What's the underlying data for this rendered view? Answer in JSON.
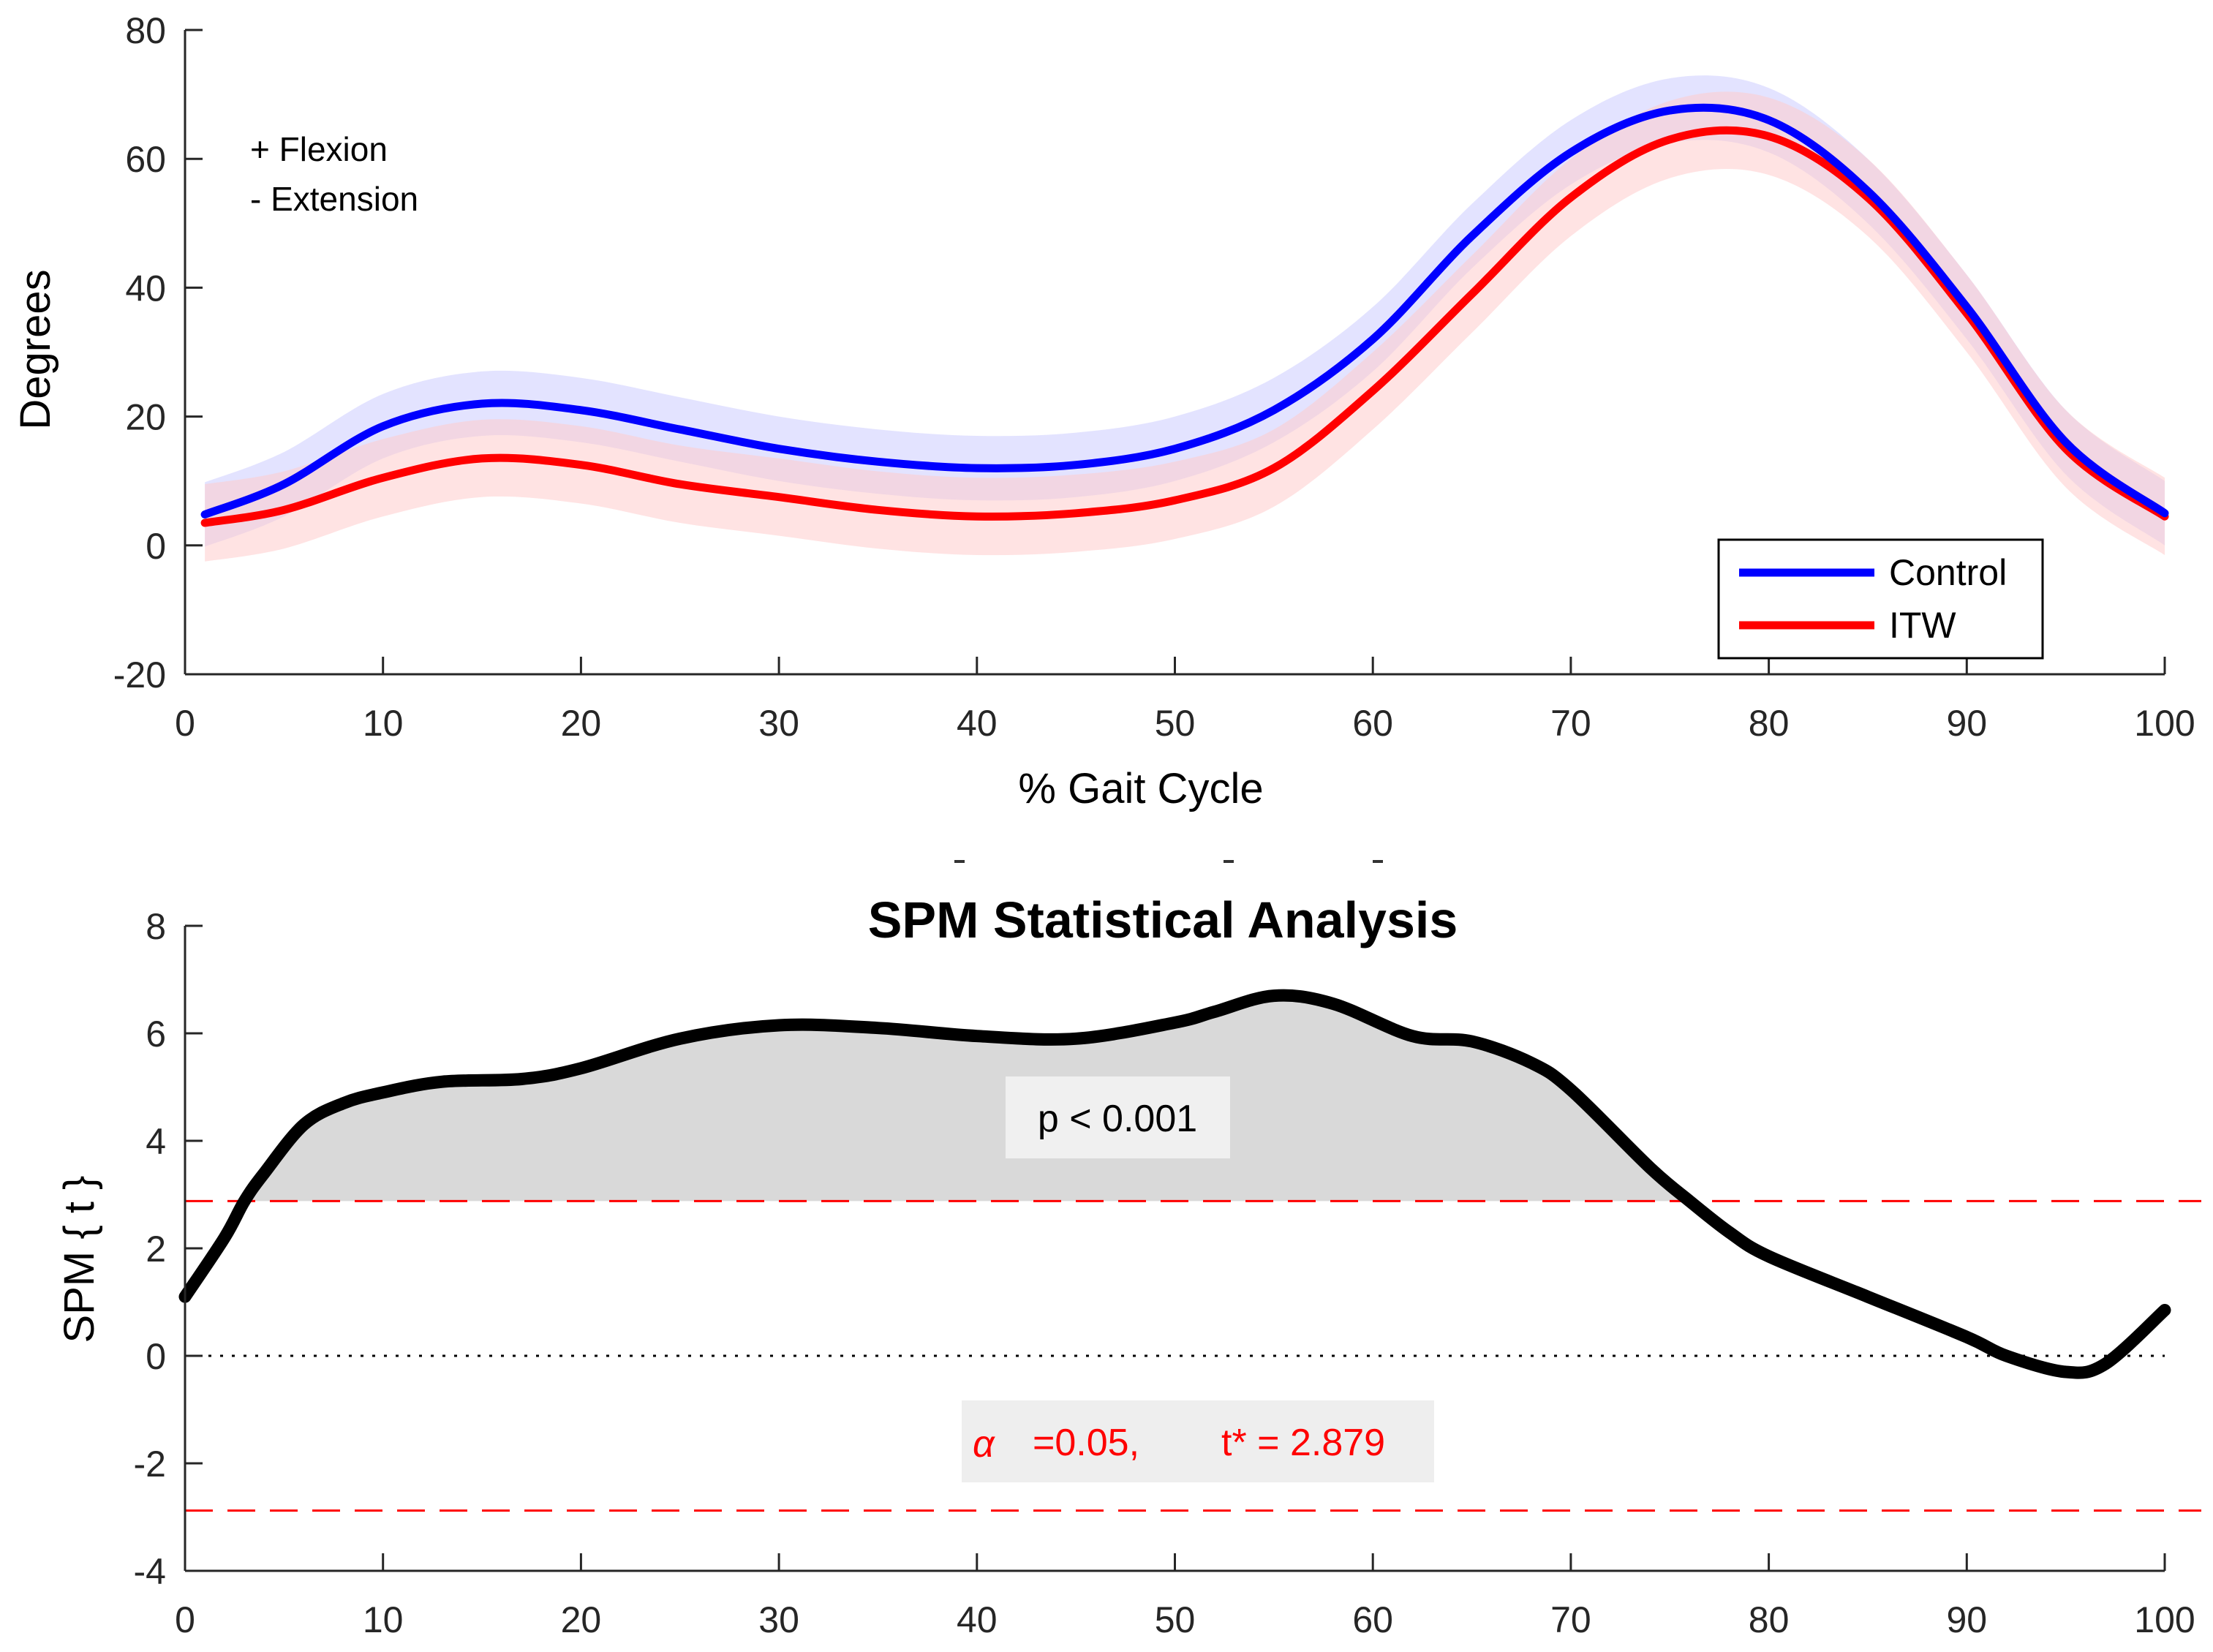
{
  "chart_data": [
    {
      "type": "line",
      "title": "",
      "xlabel": "% Gait Cycle",
      "ylabel": "Degrees",
      "xlim": [
        0,
        100
      ],
      "ylim": [
        -20,
        80
      ],
      "xticks": [
        "0",
        "10",
        "20",
        "30",
        "40",
        "50",
        "60",
        "70",
        "80",
        "90",
        "100"
      ],
      "yticks": [
        "-20",
        "0",
        "20",
        "40",
        "60",
        "80"
      ],
      "annotations": [
        "+ Flexion",
        "- Extension"
      ],
      "legend": {
        "position": "bottom-right",
        "entries": [
          "Control",
          "ITW"
        ]
      },
      "x": [
        1,
        5,
        10,
        15,
        20,
        25,
        30,
        35,
        40,
        45,
        50,
        55,
        60,
        65,
        70,
        75,
        80,
        85,
        90,
        95,
        100
      ],
      "series": [
        {
          "name": "Control",
          "color": "#0000ff",
          "band_color": "#ccccff",
          "values": [
            4.8,
            9.5,
            18.5,
            22,
            21,
            18,
            15,
            13,
            12,
            12.5,
            15,
            21,
            32,
            48,
            61,
            67.5,
            66,
            55,
            37,
            16,
            5
          ],
          "band": 5
        },
        {
          "name": "ITW",
          "color": "#ff0000",
          "band_color": "#ffcccc",
          "values": [
            3.5,
            5.5,
            10.5,
            13.5,
            12.5,
            9.5,
            7.5,
            5.5,
            4.5,
            5,
            7,
            12,
            24,
            39,
            54,
            63,
            63.5,
            54,
            36,
            15,
            4.5
          ],
          "band": 6
        }
      ]
    },
    {
      "type": "line",
      "title": "SPM Statistical Analysis",
      "xlabel": "",
      "ylabel": "SPM { t }",
      "xlim": [
        0,
        100
      ],
      "ylim": [
        -4,
        8
      ],
      "xticks": [
        "0",
        "10",
        "20",
        "30",
        "40",
        "50",
        "60",
        "70",
        "80",
        "90",
        "100"
      ],
      "yticks": [
        "-4",
        "-2",
        "0",
        "2",
        "4",
        "6",
        "8"
      ],
      "threshold": 2.879,
      "shaded_label": "p < 0.001",
      "alpha_label": "α",
      "alpha_text": "=0.05,",
      "tstar_text": "t* = 2.879",
      "threshold_color": "#ff0000",
      "fill_color": "#d9d9d9",
      "line_color": "#000000",
      "x": [
        0,
        2,
        3,
        4,
        6,
        8,
        10,
        13,
        17,
        20,
        25,
        30,
        35,
        40,
        45,
        50,
        52,
        55,
        58,
        62,
        65,
        68,
        70,
        74,
        76,
        78,
        80,
        85,
        90,
        92,
        95,
        97,
        100
      ],
      "values": [
        1.1,
        2.2,
        2.879,
        3.4,
        4.3,
        4.7,
        4.9,
        5.1,
        5.15,
        5.35,
        5.9,
        6.15,
        6.1,
        5.95,
        5.9,
        6.2,
        6.4,
        6.7,
        6.55,
        5.95,
        5.85,
        5.45,
        4.95,
        3.5,
        2.879,
        2.3,
        1.85,
        1.1,
        0.35,
        0.0,
        -0.3,
        -0.15,
        0.85
      ]
    }
  ]
}
